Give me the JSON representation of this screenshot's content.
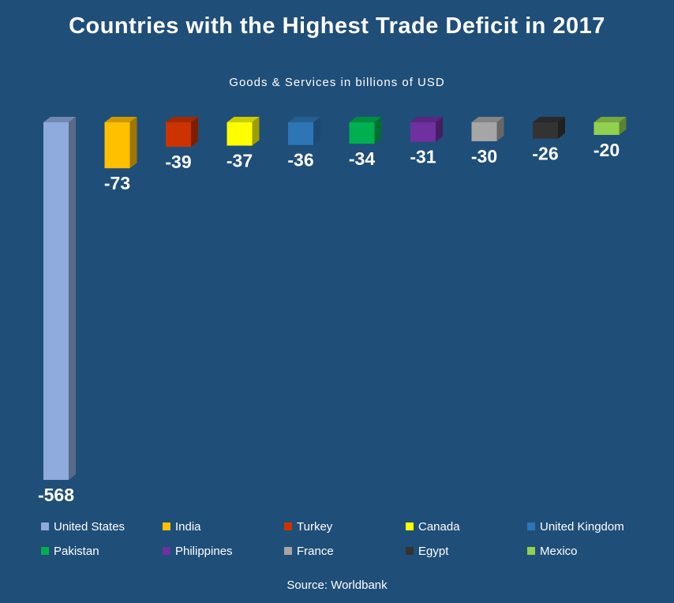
{
  "chart_data": {
    "type": "bar",
    "title": "Countries with the Highest Trade Deficit in 2017",
    "subtitle": "Goods & Services in billions of USD",
    "source": "Source: Worldbank",
    "legend_position": "bottom",
    "grid": false,
    "ylim": [
      -568,
      0
    ],
    "categories": [
      "United States",
      "India",
      "Turkey",
      "Canada",
      "United Kingdom",
      "Pakistan",
      "Philippines",
      "France",
      "Egypt",
      "Mexico"
    ],
    "values": [
      -568,
      -73,
      -39,
      -37,
      -36,
      -34,
      -31,
      -30,
      -26,
      -20
    ],
    "colors": [
      "#8faadc",
      "#ffc000",
      "#cc3300",
      "#ffff00",
      "#2e75b6",
      "#00b050",
      "#7030a0",
      "#a6a6a6",
      "#333333",
      "#92d050"
    ]
  }
}
